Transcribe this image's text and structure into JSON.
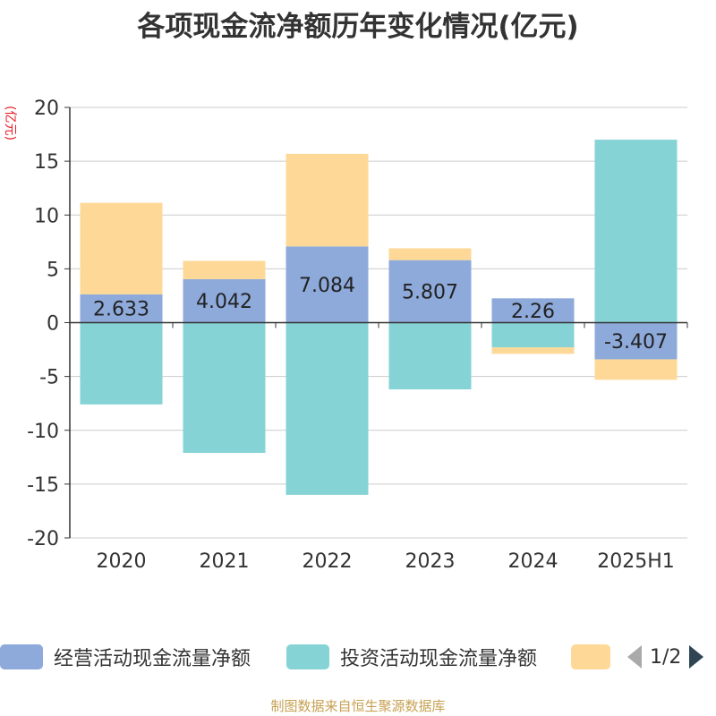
{
  "title": "各项现金流净额历年变化情况(亿元)",
  "unit_label": "(亿元)",
  "footer": "制图数据来自恒生聚源数据库",
  "legend": {
    "items": [
      {
        "label": "经营活动现金流量净额",
        "color": "#8eaadb"
      },
      {
        "label": "投资活动现金流量净额",
        "color": "#86d3d6"
      },
      {
        "label": "",
        "color": "#fed897"
      }
    ],
    "page": "1/2"
  },
  "chart_data": {
    "type": "bar",
    "stacked": true,
    "categories": [
      "2020",
      "2021",
      "2022",
      "2023",
      "2024",
      "2025H1"
    ],
    "series": [
      {
        "name": "经营活动现金流量净额",
        "color": "#8eaadb",
        "values": [
          2.633,
          4.042,
          7.084,
          5.807,
          2.26,
          -3.407
        ],
        "show_labels": true
      },
      {
        "name": "投资活动现金流量净额",
        "color": "#86d3d6",
        "values": [
          -7.6,
          -12.1,
          -16.0,
          -6.2,
          -2.3,
          17.0
        ],
        "show_labels": false
      },
      {
        "name": "",
        "color": "#fed897",
        "values": [
          8.5,
          1.7,
          8.6,
          1.1,
          -0.6,
          -1.9
        ],
        "show_labels": false
      }
    ],
    "ylim": [
      -20,
      20
    ],
    "yticks": [
      20,
      15,
      10,
      5,
      0,
      -5,
      -10,
      -15,
      -20
    ],
    "grid": true,
    "legend_position": "bottom"
  }
}
